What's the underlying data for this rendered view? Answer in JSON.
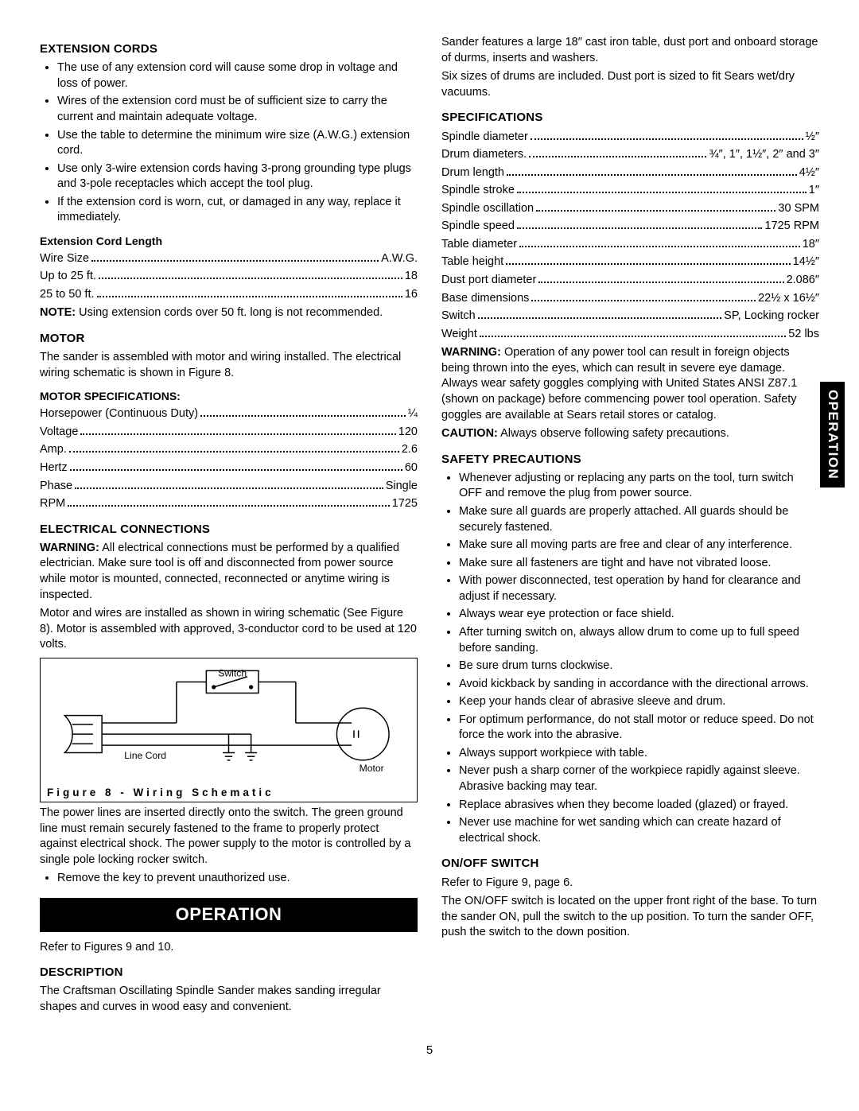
{
  "page_number": "5",
  "side_tab": "OPERATION",
  "left": {
    "ext_cords_h": "EXTENSION CORDS",
    "ext_bullets": [
      "The use of any extension cord will cause some drop in voltage and loss of power.",
      "Wires of the extension cord must be of sufficient size to carry the current and maintain adequate voltage.",
      "Use the table to determine the minimum wire size (A.W.G.) extension cord.",
      "Use only 3-wire extension cords having 3-prong grounding type plugs and 3-pole receptacles which accept the tool plug.",
      "If the extension cord is worn, cut, or damaged in any way, replace it immediately."
    ],
    "ext_len_h": "Extension Cord Length",
    "ext_tbl": [
      {
        "l": "Wire Size",
        "v": "A.W.G."
      },
      {
        "l": "Up to 25 ft.",
        "v": "18"
      },
      {
        "l": "25 to 50 ft.",
        "v": "16"
      }
    ],
    "ext_note_b": "NOTE:",
    "ext_note": " Using extension cords over 50 ft. long is not recommended.",
    "motor_h": "MOTOR",
    "motor_p": "The sander is assembled with motor and wiring installed. The electrical wiring schematic is shown in Figure 8.",
    "motor_spec_h": "MOTOR SPECIFICATIONS:",
    "motor_tbl": [
      {
        "l": "Horsepower (Continuous Duty)",
        "v": "¼"
      },
      {
        "l": "Voltage",
        "v": "120"
      },
      {
        "l": "Amp.",
        "v": "2.6"
      },
      {
        "l": "Hertz",
        "v": "60"
      },
      {
        "l": "Phase",
        "v": "Single"
      },
      {
        "l": "RPM",
        "v": "1725"
      }
    ],
    "elec_h": "ELECTRICAL CONNECTIONS",
    "elec_warn_b": "WARNING:",
    "elec_warn": " All electrical connections must be performed by a qualified electrician. Make sure tool is off and disconnected from power source while motor is mounted, connected, reconnected or anytime wiring is inspected.",
    "elec_p2": "Motor and wires are installed as shown in wiring schematic (See Figure 8). Motor is assembled with approved, 3-conductor cord to be used at 120 volts.",
    "fig_switch": "Switch",
    "fig_line": "Line Cord",
    "fig_motor": "Motor",
    "fig_cap": "Figure 8 - Wiring Schematic",
    "elec_p3": "The power lines are inserted directly onto the switch. The green ground line must remain securely fastened to the frame to properly protect against electrical shock. The power supply to the motor is controlled by a single pole locking rocker switch.",
    "elec_b1": "Remove the key to prevent unauthorized use.",
    "opbar": "OPERATION",
    "refer": "Refer to Figures 9 and 10.",
    "desc_h": "DESCRIPTION",
    "desc_p": "The Craftsman Oscillating Spindle Sander makes sanding irregular shapes and curves in wood easy and convenient."
  },
  "right": {
    "intro1": "Sander features a large 18″ cast iron table, dust port and onboard storage of durms, inserts and washers.",
    "intro2": "Six sizes of drums are included. Dust port is sized to fit Sears wet/dry vacuums.",
    "spec_h": "SPECIFICATIONS",
    "spec_tbl": [
      {
        "l": "Spindle diameter",
        "v": "½″"
      },
      {
        "l": "Drum diameters.",
        "v": "¾″, 1″, 1½″, 2″ and 3″"
      },
      {
        "l": "Drum length",
        "v": "4½″"
      },
      {
        "l": "Spindle stroke",
        "v": "1″"
      },
      {
        "l": "Spindle oscillation",
        "v": "30 SPM"
      },
      {
        "l": "Spindle speed",
        "v": "1725 RPM"
      },
      {
        "l": "Table diameter",
        "v": "18″"
      },
      {
        "l": "Table height",
        "v": "14½″"
      },
      {
        "l": "Dust port diameter",
        "v": "2.086″"
      },
      {
        "l": "Base dimensions",
        "v": "22½ x 16½″"
      },
      {
        "l": "Switch",
        "v": "SP, Locking rocker"
      },
      {
        "l": "Weight",
        "v": "52 lbs"
      }
    ],
    "warn_b": "WARNING:",
    "warn_p": " Operation of any power tool can result in foreign objects being thrown into the eyes, which can result in severe eye damage. Always wear safety goggles complying with United States ANSI Z87.1 (shown on package) before commencing power tool operation. Safety goggles are available at Sears retail stores or catalog.",
    "caut_b": "CAUTION:",
    "caut_p": " Always observe following safety precautions.",
    "safety_h": "SAFETY PRECAUTIONS",
    "safety": [
      "Whenever adjusting or replacing any parts on the tool, turn switch OFF and remove the plug from power source.",
      "Make sure all guards are properly attached. All guards should be securely fastened.",
      "Make sure all moving parts are free and clear of any interference.",
      "Make sure all fasteners are tight and have not vibrated loose.",
      "With power disconnected, test operation by hand for clearance and adjust if necessary.",
      "Always wear eye protection or face shield.",
      "After turning switch on, always allow drum to come up to full speed before sanding.",
      "Be sure drum turns clockwise.",
      "Avoid kickback by sanding in accordance with the directional arrows.",
      "Keep your hands clear of abrasive sleeve and drum.",
      "For optimum performance, do not stall motor or reduce speed. Do not force the work into the abrasive.",
      "Always support workpiece with table.",
      "Never push a sharp corner of the workpiece rapidly against sleeve. Abrasive backing may tear.",
      "Replace abrasives when they become loaded (glazed) or frayed.",
      "Never use machine for wet sanding which can create hazard of electrical shock."
    ],
    "onoff_h": "ON/OFF SWITCH",
    "onoff_ref": "Refer to Figure 9, page 6.",
    "onoff_p": "The ON/OFF switch is located on the upper front right of the base. To turn the sander ON, pull the switch to the up position. To turn the sander OFF, push the switch to the down position."
  }
}
